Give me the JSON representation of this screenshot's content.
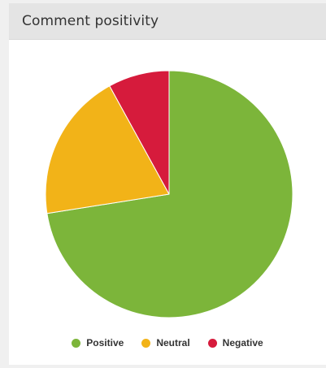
{
  "card": {
    "title": "Comment positivity"
  },
  "chart_data": {
    "type": "pie",
    "title": "Comment positivity",
    "categories": [
      "Positive",
      "Neutral",
      "Negative"
    ],
    "values": [
      72.5,
      19.5,
      8.0
    ],
    "colors": [
      "#7cb53a",
      "#f2b318",
      "#d61b3c"
    ],
    "legend_placement": "bottom"
  }
}
